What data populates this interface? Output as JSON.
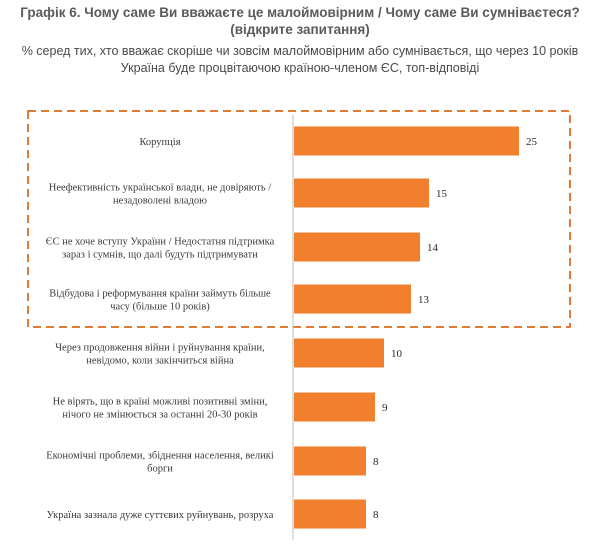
{
  "header": {
    "title_line1": "Графік 6. Чому саме Ви вважаєте це малоймовірним / Чому саме Ви сумніваєтеся?",
    "title_line2": "(відкрите запитання)",
    "subtitle_line1": "% серед тих, хто вважає скоріше чи зовсім малоймовірним або сумнівається, що через 10 років",
    "subtitle_line2": "Україна буде процвітаючою країною-членом ЄС, топ-відповіді"
  },
  "chart_data": {
    "type": "bar",
    "orientation": "horizontal",
    "categories": [
      [
        "Корупція"
      ],
      [
        "Неефективність української влади, не довіряють /",
        "незадоволені владою"
      ],
      [
        "ЄС не хоче вступу України / Недостатня підтримка",
        "зараз і сумнів, що далі будуть підтримувати"
      ],
      [
        "Відбудова і реформування країни займуть більше",
        "часу (більше 10 років)"
      ],
      [
        "Через продовження війни і руйнування країни,",
        "невідомо, коли закінчиться війна"
      ],
      [
        "Не вірять, що в країні можливі позитивні зміни,",
        "нічого не змінюється за останні 20-30 років"
      ],
      [
        "Економічні проблеми, збіднення населення, великі",
        "борги"
      ],
      [
        "Україна зазнала дуже суттєвих руйнувань, розруха"
      ]
    ],
    "values": [
      25,
      15,
      14,
      13,
      10,
      9,
      8,
      8
    ],
    "bar_color": "#f07f2e",
    "highlight_color": "#e07b39",
    "highlighted_count": 4,
    "grid": false,
    "legend": "none"
  }
}
